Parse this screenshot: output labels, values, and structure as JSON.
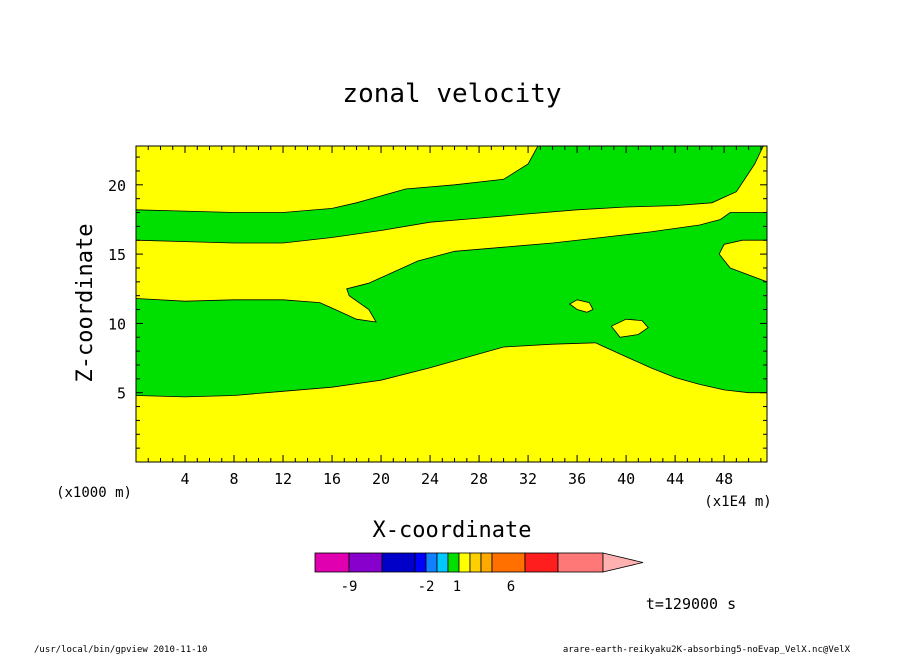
{
  "chart_data": {
    "type": "contour",
    "title": "zonal velocity",
    "xlabel": "X-coordinate",
    "ylabel": "Z-coordinate",
    "x_unit_note": "(x1E4 m)",
    "y_unit_note": "(x1000 m)",
    "xlim": [
      0,
      51.5
    ],
    "ylim": [
      0,
      22.8
    ],
    "x_ticks": [
      4,
      8,
      12,
      16,
      20,
      24,
      28,
      32,
      36,
      40,
      44,
      48
    ],
    "y_ticks": [
      5,
      10,
      15,
      20
    ],
    "bands": [
      {
        "name": "green band 1",
        "color": "#00e000",
        "upper": [
          [
            0,
            11.8
          ],
          [
            4,
            11.6
          ],
          [
            8,
            11.7
          ],
          [
            12,
            11.7
          ],
          [
            15,
            11.5
          ],
          [
            16.5,
            10.9
          ],
          [
            18,
            10.3
          ],
          [
            19.6,
            10.1
          ],
          [
            19,
            11
          ],
          [
            17.4,
            12
          ],
          [
            17.2,
            12.5
          ],
          [
            19,
            12.9
          ],
          [
            21.5,
            13.9
          ],
          [
            23,
            14.5
          ],
          [
            26,
            15.2
          ],
          [
            30,
            15.5
          ],
          [
            34,
            15.8
          ],
          [
            38,
            16.2
          ],
          [
            42,
            16.6
          ],
          [
            46,
            17.1
          ],
          [
            47.7,
            17.5
          ],
          [
            48.5,
            18
          ],
          [
            51.5,
            18
          ]
        ],
        "lower": [
          [
            0,
            4.8
          ],
          [
            4,
            4.7
          ],
          [
            8,
            4.8
          ],
          [
            12,
            5.1
          ],
          [
            16,
            5.4
          ],
          [
            20,
            5.9
          ],
          [
            24,
            6.8
          ],
          [
            28,
            7.8
          ],
          [
            30,
            8.3
          ],
          [
            34,
            8.5
          ],
          [
            37.5,
            8.6
          ],
          [
            38,
            8.4
          ],
          [
            40,
            7.6
          ],
          [
            42,
            6.8
          ],
          [
            44,
            6.1
          ],
          [
            46,
            5.6
          ],
          [
            48,
            5.2
          ],
          [
            50,
            5
          ],
          [
            51.5,
            5
          ]
        ]
      },
      {
        "name": "green band 2",
        "color": "#00e000",
        "upper": [
          [
            0,
            18.2
          ],
          [
            4,
            18.1
          ],
          [
            8,
            18.0
          ],
          [
            12,
            18.0
          ],
          [
            16,
            18.3
          ],
          [
            18,
            18.7
          ],
          [
            22,
            19.7
          ],
          [
            26,
            20
          ],
          [
            30,
            20.4
          ],
          [
            32,
            21.5
          ],
          [
            32.8,
            22.8
          ]
        ],
        "lower": [
          [
            0,
            16
          ],
          [
            4,
            15.9
          ],
          [
            8,
            15.8
          ],
          [
            12,
            15.8
          ],
          [
            16,
            16.2
          ],
          [
            20,
            16.7
          ],
          [
            24,
            17.3
          ],
          [
            28,
            17.6
          ],
          [
            32,
            17.9
          ],
          [
            36,
            18.2
          ],
          [
            40,
            18.4
          ],
          [
            44,
            18.5
          ],
          [
            47,
            18.7
          ],
          [
            49,
            19.5
          ],
          [
            50.5,
            21.5
          ],
          [
            51.2,
            22.8
          ]
        ]
      }
    ],
    "islands": [
      {
        "name": "island east upper",
        "color": "#ffff00",
        "points": [
          [
            51.5,
            13
          ],
          [
            48.5,
            14
          ],
          [
            47.6,
            15
          ],
          [
            48,
            15.7
          ],
          [
            49.5,
            16
          ],
          [
            51.5,
            16
          ]
        ]
      },
      {
        "name": "island small",
        "color": "#ffff00",
        "points": [
          [
            35.4,
            11.4
          ],
          [
            36,
            11.7
          ],
          [
            37,
            11.5
          ],
          [
            37.3,
            11
          ],
          [
            36.8,
            10.8
          ],
          [
            36,
            11
          ]
        ]
      },
      {
        "name": "island oval",
        "color": "#ffff00",
        "points": [
          [
            38.8,
            9.8
          ],
          [
            40,
            10.3
          ],
          [
            41.3,
            10.2
          ],
          [
            41.8,
            9.7
          ],
          [
            41,
            9.2
          ],
          [
            39.5,
            9
          ]
        ]
      }
    ],
    "colorbar": {
      "colors": [
        "#e000b0",
        "#8800cc",
        "#0000c8",
        "#0000ff",
        "#1080ff",
        "#00c8ff",
        "#00e000",
        "#ffff00",
        "#ffd000",
        "#ffaa00",
        "#ff7000",
        "#ff1e1e",
        "#ff7878",
        "#ffb0b0"
      ],
      "labels": [
        "-9",
        "-2",
        "1",
        "6"
      ]
    },
    "time_label": "t=129000 s"
  },
  "footer": {
    "left": "/usr/local/bin/gpview  2010-11-10",
    "right": "arare-earth-reikyaku2K-absorbing5-noEvap_VelX.nc@VelX"
  }
}
